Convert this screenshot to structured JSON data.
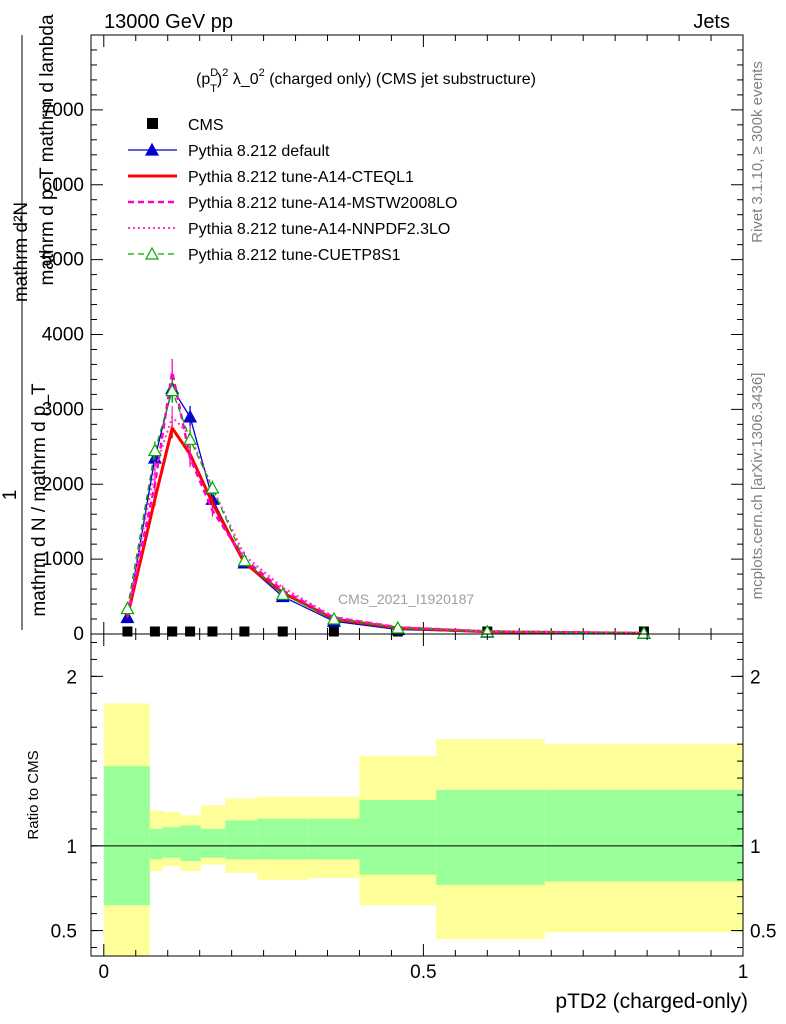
{
  "header": {
    "left": "13000 GeV pp",
    "right": "Jets"
  },
  "watermarks": {
    "rivet": "Rivet 3.1.10, ≥ 300k events",
    "mcplots": "mcplots.cern.ch [arXiv:1306.3436]"
  },
  "analysis_tag": "CMS_2021_I1920187",
  "ylabel": {
    "line1": "mathrm d²N",
    "line2": "mathrm d p_T mathrm d lambda",
    "line3": "1",
    "line4": "mathrm d N / mathrm d p_T"
  },
  "chart_data": [
    {
      "type": "line",
      "title": "(p_T^D)^2 λ_0^2 (charged only) (CMS jet substructure)",
      "title_parts": {
        "a": "(p",
        "sup1": "D",
        "sub1": "T",
        "b": ")",
        "sup2": "2",
        "c": " λ_0",
        "sup3": "2",
        "d": " (charged only) (CMS jet substructure)"
      },
      "xlabel": "pTD2 (charged-only)",
      "ylabel": "1 / (mathrm d N / mathrm d p_T) mathrm d²N / (mathrm d p_T mathrm d lambda)",
      "xlim": [
        -0.02,
        1.0
      ],
      "ylim": [
        0,
        8000
      ],
      "x_ticks": [
        0,
        0.5,
        1
      ],
      "x_tick_labels": [
        "0",
        "0.5",
        "1"
      ],
      "y_ticks": [
        0,
        1000,
        2000,
        3000,
        4000,
        5000,
        6000,
        7000
      ],
      "y_tick_labels": [
        "0",
        "1000",
        "2000",
        "3000",
        "4000",
        "5000",
        "6000",
        "7000"
      ],
      "legend_position": "top-left",
      "x": [
        0.037,
        0.08,
        0.107,
        0.135,
        0.17,
        0.22,
        0.28,
        0.36,
        0.46,
        0.6,
        0.845
      ],
      "series": [
        {
          "name": "CMS",
          "color": "#000000",
          "style": "marker-square",
          "values": [
            20,
            20,
            20,
            20,
            20,
            20,
            20,
            20,
            20,
            20,
            20
          ]
        },
        {
          "name": "Pythia 8.212 default",
          "color": "#0000cc",
          "style": "solid-triangle",
          "values": [
            220,
            2350,
            3280,
            2900,
            1800,
            950,
            500,
            170,
            60,
            25,
            8
          ]
        },
        {
          "name": "Pythia 8.212 tune-A14-CTEQL1",
          "color": "#ff0000",
          "style": "solid-thick",
          "values": [
            230,
            1800,
            2750,
            2400,
            1750,
            950,
            550,
            200,
            80,
            30,
            10
          ]
        },
        {
          "name": "Pythia 8.212 tune-A14-MSTW2008LO",
          "color": "#ff00cc",
          "style": "dashed",
          "values": [
            250,
            2000,
            3500,
            2350,
            1650,
            1000,
            580,
            220,
            90,
            35,
            12
          ]
        },
        {
          "name": "Pythia 8.212 tune-A14-NNPDF2.3LO",
          "color": "#ff33cc",
          "style": "dotted",
          "values": [
            280,
            2200,
            2900,
            2650,
            1950,
            1050,
            620,
            230,
            95,
            38,
            12
          ]
        },
        {
          "name": "Pythia 8.212 tune-CUETP8S1",
          "color": "#00aa00",
          "style": "dashed-open-triangle",
          "values": [
            340,
            2450,
            3250,
            2600,
            1950,
            980,
            530,
            200,
            80,
            30,
            10
          ]
        }
      ]
    },
    {
      "type": "area",
      "title": "Ratio to CMS",
      "ylabel": "Ratio to CMS",
      "xlim": [
        -0.02,
        1.0
      ],
      "ylim": [
        0.35,
        2.25
      ],
      "y_ticks": [
        0.5,
        1,
        2
      ],
      "y_tick_labels": [
        "0.5",
        "1",
        "2"
      ],
      "bins": [
        0,
        0.072,
        0.092,
        0.12,
        0.152,
        0.19,
        0.24,
        0.32,
        0.4,
        0.52,
        0.69,
        1.0
      ],
      "inner_band": {
        "color": "#99ff99",
        "low": [
          0.65,
          0.92,
          0.93,
          0.91,
          0.93,
          0.92,
          0.92,
          0.92,
          0.83,
          0.77,
          0.79
        ],
        "high": [
          1.47,
          1.1,
          1.11,
          1.12,
          1.1,
          1.15,
          1.16,
          1.16,
          1.27,
          1.33,
          1.33
        ]
      },
      "outer_band": {
        "color": "#ffff99",
        "low": [
          0.35,
          0.85,
          0.88,
          0.85,
          0.89,
          0.84,
          0.8,
          0.81,
          0.65,
          0.45,
          0.49
        ],
        "high": [
          1.84,
          1.21,
          1.2,
          1.18,
          1.24,
          1.28,
          1.29,
          1.29,
          1.53,
          1.63,
          1.6
        ]
      },
      "reference_line": 1
    }
  ]
}
